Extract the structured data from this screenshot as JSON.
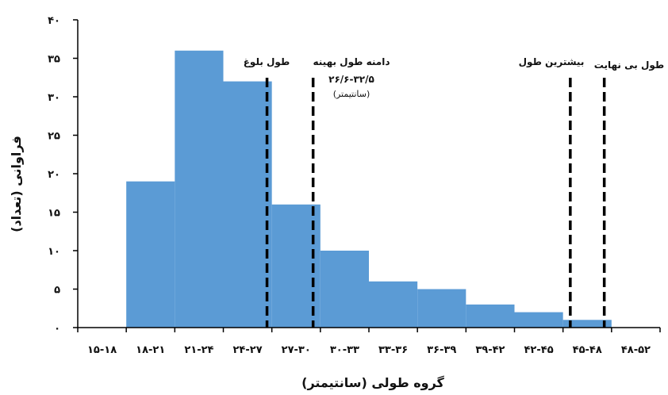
{
  "chart_data": {
    "type": "bar",
    "title": "",
    "xlabel": "گروه طولی (سانتیمتر)",
    "ylabel": "فراوانی (تعداد)",
    "ylim": [
      0,
      40
    ],
    "yticks": [
      "۰",
      "۵",
      "۱۰",
      "۱۵",
      "۲۰",
      "۲۵",
      "۳۰",
      "۳۵",
      "۴۰"
    ],
    "ytick_values": [
      0,
      5,
      10,
      15,
      20,
      25,
      30,
      35,
      40
    ],
    "categories": [
      "۱۵-۱۸",
      "۱۸-۲۱",
      "۲۱-۲۴",
      "۲۴-۲۷",
      "۲۷-۳۰",
      "۳۰-۳۳",
      "۳۳-۳۶",
      "۳۶-۳۹",
      "۳۹-۴۲",
      "۴۲-۴۵",
      "۴۵-۴۸",
      "۴۸-۵۲"
    ],
    "values": [
      0,
      19,
      36,
      32,
      16,
      10,
      6,
      5,
      3,
      2,
      1,
      0
    ],
    "bar_color": "#5b9bd5",
    "grid": false,
    "annotations": [
      {
        "name": "maturity",
        "label": "طول بلوغ",
        "x_category_index": 3.9
      },
      {
        "name": "optimum",
        "label": "دامنه طول بهینه",
        "sub1": "۲۶/۶-۳۲/۵",
        "sub2": "(سانتیمتر)",
        "x_category_index": 4.85
      },
      {
        "name": "max",
        "label": "بیشترین طول",
        "x_category_index": 10.15
      },
      {
        "name": "infinity",
        "label": "طول بی نهایت",
        "x_category_index": 10.85
      }
    ]
  }
}
